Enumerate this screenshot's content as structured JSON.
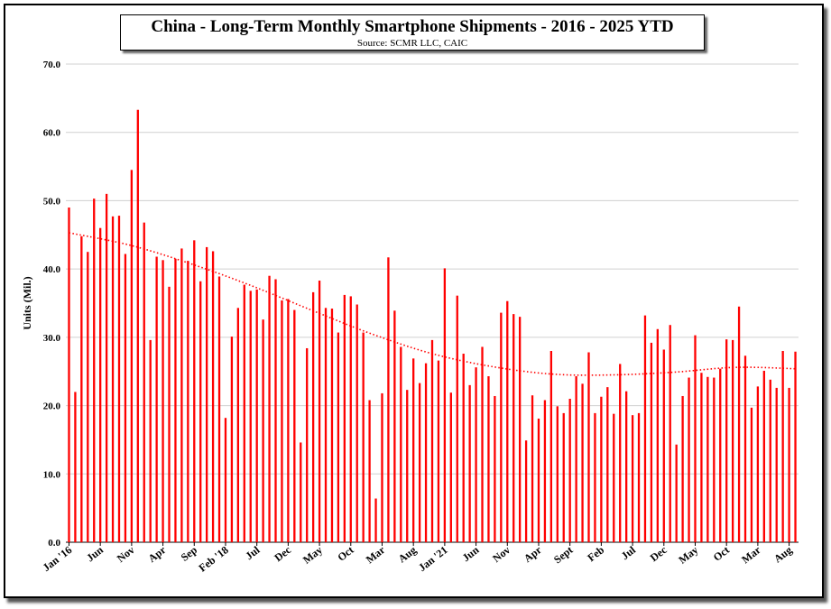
{
  "chart_data": {
    "type": "bar",
    "title": "China - Long-Term Monthly Smartphone Shipments - 2016 - 2025 YTD",
    "subtitle": "Source: SCMR LLC, CAIC",
    "ylabel": "Units (Mil.)",
    "xlabel": "",
    "ylim": [
      0,
      70
    ],
    "yticks": [
      "0.0",
      "10.0",
      "20.0",
      "30.0",
      "40.0",
      "50.0",
      "60.0",
      "70.0"
    ],
    "grid": true,
    "bar_color": "#ff0000",
    "trend_color": "#ff0000",
    "x_tick_labels": [
      {
        "index": 0,
        "label": "Jan '16"
      },
      {
        "index": 5,
        "label": "Jun"
      },
      {
        "index": 10,
        "label": "Nov"
      },
      {
        "index": 15,
        "label": "Apr"
      },
      {
        "index": 20,
        "label": "Sep"
      },
      {
        "index": 25,
        "label": "Feb '18"
      },
      {
        "index": 30,
        "label": "Jul"
      },
      {
        "index": 35,
        "label": "Dec"
      },
      {
        "index": 40,
        "label": "May"
      },
      {
        "index": 45,
        "label": "Oct"
      },
      {
        "index": 50,
        "label": "Mar"
      },
      {
        "index": 55,
        "label": "Aug"
      },
      {
        "index": 60,
        "label": "Jan '21"
      },
      {
        "index": 65,
        "label": "Jun"
      },
      {
        "index": 70,
        "label": "Nov"
      },
      {
        "index": 75,
        "label": "Apr"
      },
      {
        "index": 80,
        "label": "Sept"
      },
      {
        "index": 85,
        "label": "Feb"
      },
      {
        "index": 90,
        "label": "Jul"
      },
      {
        "index": 95,
        "label": "Dec"
      },
      {
        "index": 100,
        "label": "May"
      },
      {
        "index": 105,
        "label": "Oct"
      },
      {
        "index": 110,
        "label": "Mar"
      },
      {
        "index": 115,
        "label": "Aug"
      }
    ],
    "values": [
      49.0,
      22.0,
      44.8,
      42.5,
      50.3,
      46.0,
      51.0,
      47.7,
      47.8,
      42.2,
      54.5,
      63.3,
      46.8,
      29.6,
      41.8,
      41.3,
      37.4,
      41.5,
      43.0,
      41.2,
      44.2,
      38.2,
      43.2,
      42.6,
      38.9,
      18.2,
      30.1,
      34.3,
      37.7,
      36.8,
      37.0,
      32.6,
      39.0,
      38.5,
      35.4,
      35.6,
      34.0,
      14.6,
      28.4,
      36.6,
      38.3,
      34.3,
      34.2,
      30.7,
      36.2,
      36.0,
      34.8,
      30.7,
      20.8,
      6.4,
      21.8,
      41.7,
      33.9,
      28.6,
      22.3,
      26.9,
      23.3,
      26.2,
      29.6,
      26.6,
      40.1,
      21.9,
      36.1,
      27.6,
      23.0,
      25.6,
      28.6,
      24.3,
      21.4,
      33.6,
      35.3,
      33.4,
      33.0,
      14.9,
      21.5,
      18.1,
      20.8,
      28.0,
      19.9,
      18.9,
      21.0,
      24.3,
      23.2,
      27.8,
      18.9,
      21.3,
      22.7,
      18.8,
      26.1,
      22.1,
      18.6,
      18.9,
      33.2,
      29.2,
      31.2,
      28.2,
      31.8,
      14.3,
      21.4,
      24.1,
      30.3,
      24.8,
      24.2,
      24.1,
      25.4,
      29.7,
      29.6,
      34.5,
      27.3,
      19.7,
      22.8,
      25.1,
      23.8,
      22.6,
      28.0,
      22.6,
      27.9
    ],
    "trendline": {
      "type": "polynomial",
      "style": "dotted",
      "values": [
        45.3,
        43.5,
        40.8,
        37.6,
        34.0,
        30.5,
        27.6,
        25.7,
        24.6,
        24.5,
        24.9,
        25.6,
        25.4
      ]
    }
  }
}
